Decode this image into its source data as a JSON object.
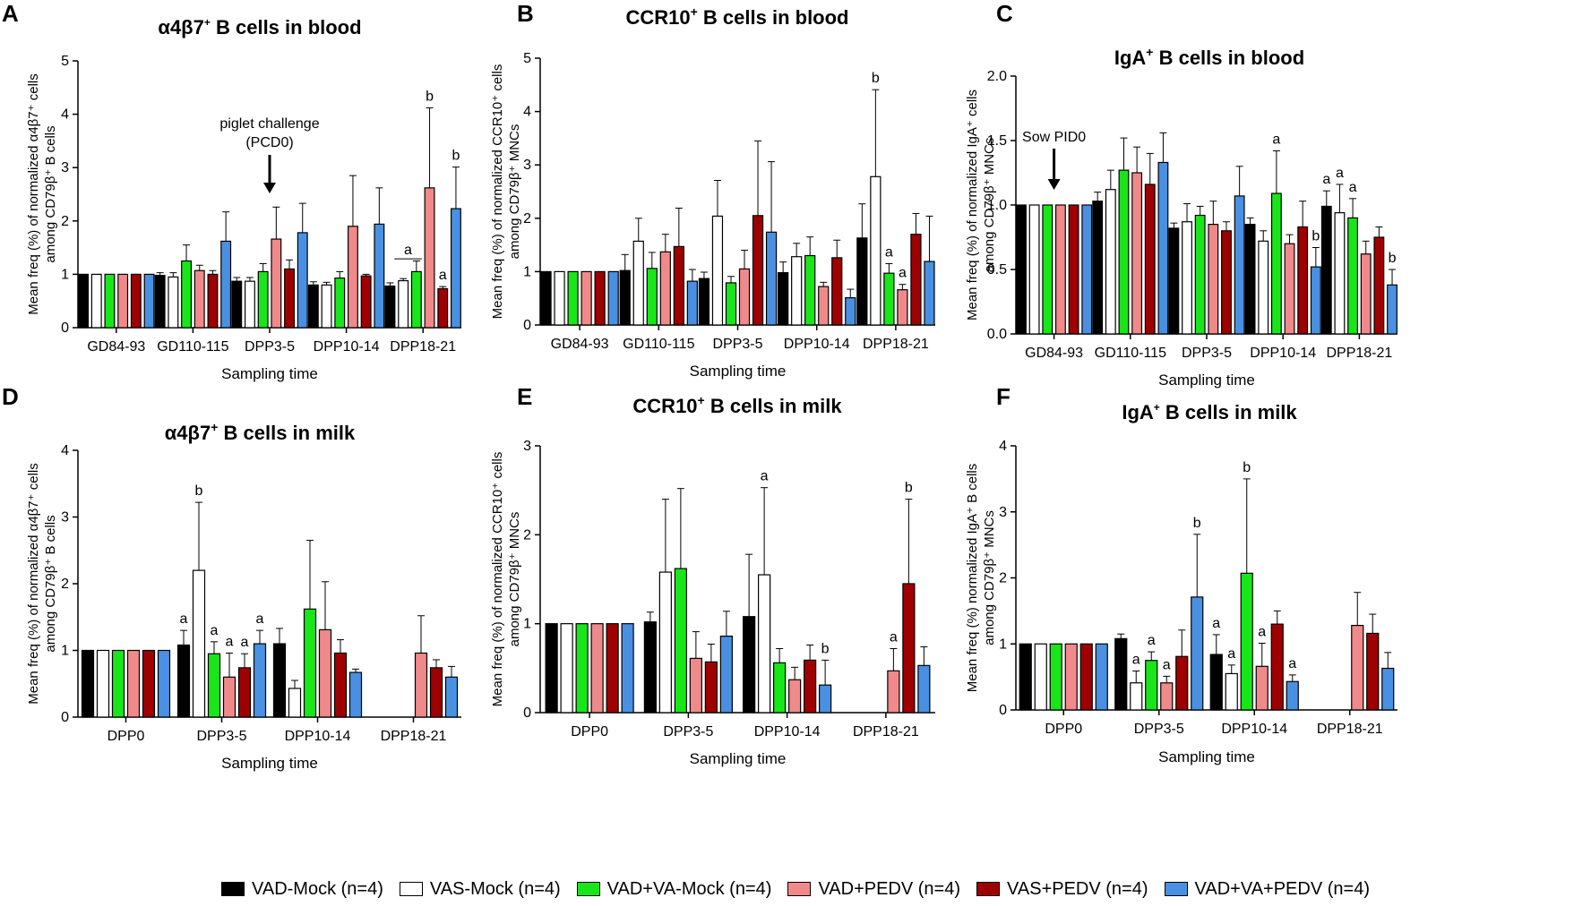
{
  "legend": [
    {
      "label": "VAD-Mock (n=4)",
      "color": "#000000"
    },
    {
      "label": "VAS-Mock (n=4)",
      "color": "#ffffff"
    },
    {
      "label": "VAD+VA-Mock (n=4)",
      "color": "#19e619"
    },
    {
      "label": "VAD+PEDV (n=4)",
      "color": "#f08a8a"
    },
    {
      "label": "VAS+PEDV (n=4)",
      "color": "#9e0000"
    },
    {
      "label": "VAD+VA+PEDV (n=4)",
      "color": "#4a90e2"
    }
  ],
  "chart_data": [
    {
      "id": "A",
      "type": "bar",
      "letter": "A",
      "title_main": "α4β7",
      "title_sup": "+",
      "title_rest": " B cells in blood",
      "ylabel_line1": "Mean freq (%) of normalized α4β7⁺ cells",
      "ylabel_line2": "among CD79β⁺ B cells",
      "xlabel": "Sampling time",
      "yticks": [
        "0",
        "1",
        "2",
        "3",
        "4",
        "5"
      ],
      "ylim": [
        0,
        5
      ],
      "categories": [
        "GD84-93",
        "GD110-115",
        "DPP3-5",
        "DPP10-14",
        "DPP18-21"
      ],
      "series": [
        {
          "name": "VAD-Mock",
          "values": [
            1,
            0.98,
            0.87,
            0.8,
            0.78
          ],
          "errors": [
            0,
            0.05,
            0.07,
            0.06,
            0.06
          ]
        },
        {
          "name": "VAS-Mock",
          "values": [
            1,
            0.95,
            0.87,
            0.8,
            0.88
          ],
          "errors": [
            0,
            0.08,
            0.07,
            0.05,
            0.04
          ]
        },
        {
          "name": "VAD+VA-Mock",
          "values": [
            1,
            1.25,
            1.05,
            0.93,
            1.05
          ],
          "errors": [
            0,
            0.3,
            0.15,
            0.12,
            0.2
          ]
        },
        {
          "name": "VAD+PEDV",
          "values": [
            1,
            1.07,
            1.66,
            1.9,
            2.62
          ],
          "errors": [
            0,
            0.1,
            0.6,
            0.95,
            1.5
          ]
        },
        {
          "name": "VAS+PEDV",
          "values": [
            1,
            1.0,
            1.1,
            0.97,
            0.73
          ],
          "errors": [
            0,
            0.07,
            0.17,
            0.03,
            0.04
          ]
        },
        {
          "name": "VAD+VA+PEDV",
          "values": [
            1,
            1.62,
            1.78,
            1.94,
            2.23
          ],
          "errors": [
            0,
            0.55,
            0.55,
            0.68,
            0.78
          ]
        }
      ],
      "significance": [
        {
          "group": 4,
          "series": 3,
          "label": "b"
        },
        {
          "group": 4,
          "series": 4,
          "label": "a"
        },
        {
          "group": 4,
          "series": 5,
          "label": "b"
        },
        {
          "group": 4,
          "series": 1,
          "label": "a",
          "bracket_to": 2
        }
      ],
      "annotation": {
        "line1": "piglet challenge",
        "line2": "(PCD0)",
        "group": 2
      }
    },
    {
      "id": "B",
      "type": "bar",
      "letter": "B",
      "title_main": "CCR10",
      "title_sup": "+",
      "title_rest": " B cells in blood",
      "ylabel_line1": "Mean freq (%) of normalized CCR10⁺ cells",
      "ylabel_line2": "among CD79β⁺ MNCs",
      "xlabel": "Sampling time",
      "yticks": [
        "0",
        "1",
        "2",
        "3",
        "4",
        "5"
      ],
      "ylim": [
        0,
        5
      ],
      "categories": [
        "GD84-93",
        "GD110-115",
        "DPP3-5",
        "DPP10-14",
        "DPP18-21"
      ],
      "series": [
        {
          "name": "VAD-Mock",
          "values": [
            1,
            1.02,
            0.87,
            0.98,
            1.63
          ],
          "errors": [
            0,
            0.3,
            0.12,
            0.2,
            0.64
          ]
        },
        {
          "name": "VAS-Mock",
          "values": [
            1,
            1.57,
            2.04,
            1.28,
            2.78
          ],
          "errors": [
            0,
            0.43,
            0.67,
            0.25,
            1.63
          ]
        },
        {
          "name": "VAD+VA-Mock",
          "values": [
            1,
            1.06,
            0.79,
            1.3,
            0.97
          ],
          "errors": [
            0,
            0.3,
            0.12,
            0.35,
            0.18
          ]
        },
        {
          "name": "VAD+PEDV",
          "values": [
            1,
            1.37,
            1.05,
            0.72,
            0.66
          ],
          "errors": [
            0,
            0.33,
            0.35,
            0.08,
            0.1
          ]
        },
        {
          "name": "VAS+PEDV",
          "values": [
            1,
            1.47,
            2.05,
            1.26,
            1.7
          ],
          "errors": [
            0,
            0.72,
            1.4,
            0.33,
            0.39
          ]
        },
        {
          "name": "VAD+VA+PEDV",
          "values": [
            1,
            0.82,
            1.74,
            0.51,
            1.19
          ],
          "errors": [
            0,
            0.22,
            1.32,
            0.16,
            0.85
          ]
        }
      ],
      "significance": [
        {
          "group": 4,
          "series": 1,
          "label": "b"
        },
        {
          "group": 4,
          "series": 2,
          "label": "a"
        },
        {
          "group": 4,
          "series": 3,
          "label": "a"
        }
      ]
    },
    {
      "id": "C",
      "type": "bar",
      "letter": "C",
      "title_main": "IgA",
      "title_sup": "+",
      "title_rest": " B cells in blood",
      "ylabel_line1": "Mean freq (%) of normalized IgA⁺ cells",
      "ylabel_line2": "among CD79β⁺ MNCs",
      "xlabel": "Sampling time",
      "yticks": [
        "0.0",
        "0.5",
        "1.0",
        "1.5",
        "2.0"
      ],
      "ylim": [
        0,
        2
      ],
      "categories": [
        "GD84-93",
        "GD110-115",
        "DPP3-5",
        "DPP10-14",
        "DPP18-21"
      ],
      "series": [
        {
          "name": "VAD-Mock",
          "values": [
            1,
            1.03,
            0.82,
            0.85,
            0.99
          ],
          "errors": [
            0,
            0.07,
            0.04,
            0.05,
            0.12
          ]
        },
        {
          "name": "VAS-Mock",
          "values": [
            1,
            1.12,
            0.87,
            0.72,
            0.94
          ],
          "errors": [
            0,
            0.15,
            0.14,
            0.08,
            0.22
          ]
        },
        {
          "name": "VAD+VA-Mock",
          "values": [
            1,
            1.27,
            0.92,
            1.09,
            0.9
          ],
          "errors": [
            0,
            0.25,
            0.07,
            0.33,
            0.15
          ]
        },
        {
          "name": "VAD+PEDV",
          "values": [
            1,
            1.25,
            0.85,
            0.7,
            0.62
          ],
          "errors": [
            0,
            0.2,
            0.18,
            0.07,
            0.1
          ]
        },
        {
          "name": "VAS+PEDV",
          "values": [
            1,
            1.16,
            0.8,
            0.83,
            0.75
          ],
          "errors": [
            0,
            0.24,
            0.07,
            0.2,
            0.08
          ]
        },
        {
          "name": "VAD+VA+PEDV",
          "values": [
            1,
            1.33,
            1.07,
            0.52,
            0.38
          ],
          "errors": [
            0,
            0.23,
            0.23,
            0.15,
            0.12
          ]
        }
      ],
      "significance": [
        {
          "group": 3,
          "series": 2,
          "label": "a"
        },
        {
          "group": 3,
          "series": 5,
          "label": "b"
        },
        {
          "group": 4,
          "series": 0,
          "label": "a"
        },
        {
          "group": 4,
          "series": 1,
          "label": "a"
        },
        {
          "group": 4,
          "series": 2,
          "label": "a"
        },
        {
          "group": 4,
          "series": 5,
          "label": "b"
        }
      ],
      "annotation": {
        "line1": "Sow PID0",
        "line2": "",
        "group": 0
      }
    },
    {
      "id": "D",
      "type": "bar",
      "letter": "D",
      "title_main": "α4β7",
      "title_sup": "+",
      "title_rest": " B cells in milk",
      "ylabel_line1": "Mean freq (%) of normalized α4β7⁺ cells",
      "ylabel_line2": "among CD79β⁺ B cells",
      "xlabel": "Sampling time",
      "yticks": [
        "0",
        "1",
        "2",
        "3",
        "4"
      ],
      "ylim": [
        0,
        4
      ],
      "categories": [
        "DPP0",
        "DPP3-5",
        "DPP10-14",
        "DPP18-21"
      ],
      "series": [
        {
          "name": "VAD-Mock",
          "values": [
            1,
            1.08,
            1.1,
            null
          ],
          "errors": [
            0,
            0.22,
            0.23,
            0
          ]
        },
        {
          "name": "VAS-Mock",
          "values": [
            1,
            2.2,
            0.43,
            null
          ],
          "errors": [
            0,
            1.02,
            0.12,
            0
          ]
        },
        {
          "name": "VAD+VA-Mock",
          "values": [
            1,
            0.95,
            1.62,
            null
          ],
          "errors": [
            0,
            0.18,
            1.03,
            0
          ]
        },
        {
          "name": "VAD+PEDV",
          "values": [
            1,
            0.6,
            1.31,
            0.96
          ],
          "errors": [
            0,
            0.36,
            0.72,
            0.56
          ]
        },
        {
          "name": "VAS+PEDV",
          "values": [
            1,
            0.74,
            0.96,
            0.74
          ],
          "errors": [
            0,
            0.21,
            0.2,
            0.12
          ]
        },
        {
          "name": "VAD+VA+PEDV",
          "values": [
            1,
            1.1,
            0.67,
            0.6
          ],
          "errors": [
            0,
            0.2,
            0.05,
            0.16
          ]
        }
      ],
      "significance": [
        {
          "group": 1,
          "series": 0,
          "label": "a"
        },
        {
          "group": 1,
          "series": 1,
          "label": "b"
        },
        {
          "group": 1,
          "series": 2,
          "label": "a"
        },
        {
          "group": 1,
          "series": 3,
          "label": "a"
        },
        {
          "group": 1,
          "series": 4,
          "label": "a"
        },
        {
          "group": 1,
          "series": 5,
          "label": "a"
        }
      ]
    },
    {
      "id": "E",
      "type": "bar",
      "letter": "E",
      "title_main": "CCR10",
      "title_sup": "+",
      "title_rest": " B cells in milk",
      "ylabel_line1": "Mean freq (%) of normalized CCR10⁺ cells",
      "ylabel_line2": "among CD79β⁺ MNCs",
      "xlabel": "Sampling time",
      "yticks": [
        "0",
        "1",
        "2",
        "3"
      ],
      "ylim": [
        0,
        3
      ],
      "categories": [
        "DPP0",
        "DPP3-5",
        "DPP10-14",
        "DPP18-21"
      ],
      "series": [
        {
          "name": "VAD-Mock",
          "values": [
            1,
            1.02,
            1.08,
            null
          ],
          "errors": [
            0,
            0.11,
            0.7,
            0
          ]
        },
        {
          "name": "VAS-Mock",
          "values": [
            1,
            1.58,
            1.55,
            null
          ],
          "errors": [
            0,
            0.82,
            0.98,
            0
          ]
        },
        {
          "name": "VAD+VA-Mock",
          "values": [
            1,
            1.62,
            0.56,
            null
          ],
          "errors": [
            0,
            0.9,
            0.16,
            0
          ]
        },
        {
          "name": "VAD+PEDV",
          "values": [
            1,
            0.61,
            0.37,
            0.47
          ],
          "errors": [
            0,
            0.3,
            0.14,
            0.25
          ]
        },
        {
          "name": "VAS+PEDV",
          "values": [
            1,
            0.57,
            0.59,
            1.45
          ],
          "errors": [
            0,
            0.2,
            0.17,
            0.95
          ]
        },
        {
          "name": "VAD+VA+PEDV",
          "values": [
            1,
            0.86,
            0.31,
            0.53
          ],
          "errors": [
            0,
            0.28,
            0.28,
            0.21
          ]
        }
      ],
      "significance": [
        {
          "group": 2,
          "series": 1,
          "label": "a"
        },
        {
          "group": 2,
          "series": 5,
          "label": "b"
        },
        {
          "group": 3,
          "series": 3,
          "label": "a"
        },
        {
          "group": 3,
          "series": 4,
          "label": "b"
        }
      ]
    },
    {
      "id": "F",
      "type": "bar",
      "letter": "F",
      "title_main": "IgA",
      "title_sup": "+",
      "title_rest": " B cells in milk",
      "ylabel_line1": "Mean freq (%) normalized IgA⁺ B cells",
      "ylabel_line2": "among CD79β⁺ MNCs",
      "xlabel": "Sampling time",
      "yticks": [
        "0",
        "1",
        "2",
        "3",
        "4"
      ],
      "ylim": [
        0,
        4
      ],
      "categories": [
        "DPP0",
        "DPP3-5",
        "DPP10-14",
        "DPP18-21"
      ],
      "series": [
        {
          "name": "VAD-Mock",
          "values": [
            1,
            1.08,
            0.84,
            null
          ],
          "errors": [
            0,
            0.07,
            0.3,
            0
          ]
        },
        {
          "name": "VAS-Mock",
          "values": [
            1,
            0.41,
            0.55,
            null
          ],
          "errors": [
            0,
            0.18,
            0.13,
            0
          ]
        },
        {
          "name": "VAD+VA-Mock",
          "values": [
            1,
            0.75,
            2.07,
            null
          ],
          "errors": [
            0,
            0.13,
            1.43,
            0
          ]
        },
        {
          "name": "VAD+PEDV",
          "values": [
            1,
            0.41,
            0.66,
            1.28
          ],
          "errors": [
            0,
            0.1,
            0.35,
            0.5
          ]
        },
        {
          "name": "VAS+PEDV",
          "values": [
            1,
            0.81,
            1.3,
            1.16
          ],
          "errors": [
            0,
            0.4,
            0.2,
            0.29
          ]
        },
        {
          "name": "VAD+VA+PEDV",
          "values": [
            1,
            1.71,
            0.43,
            0.63
          ],
          "errors": [
            0,
            0.95,
            0.1,
            0.24
          ]
        }
      ],
      "significance": [
        {
          "group": 1,
          "series": 1,
          "label": "a"
        },
        {
          "group": 1,
          "series": 2,
          "label": "a"
        },
        {
          "group": 1,
          "series": 3,
          "label": "a"
        },
        {
          "group": 1,
          "series": 5,
          "label": "b"
        },
        {
          "group": 2,
          "series": 0,
          "label": "a"
        },
        {
          "group": 2,
          "series": 1,
          "label": "a"
        },
        {
          "group": 2,
          "series": 2,
          "label": "b"
        },
        {
          "group": 2,
          "series": 3,
          "label": "a"
        },
        {
          "group": 2,
          "series": 5,
          "label": "a"
        }
      ]
    }
  ]
}
